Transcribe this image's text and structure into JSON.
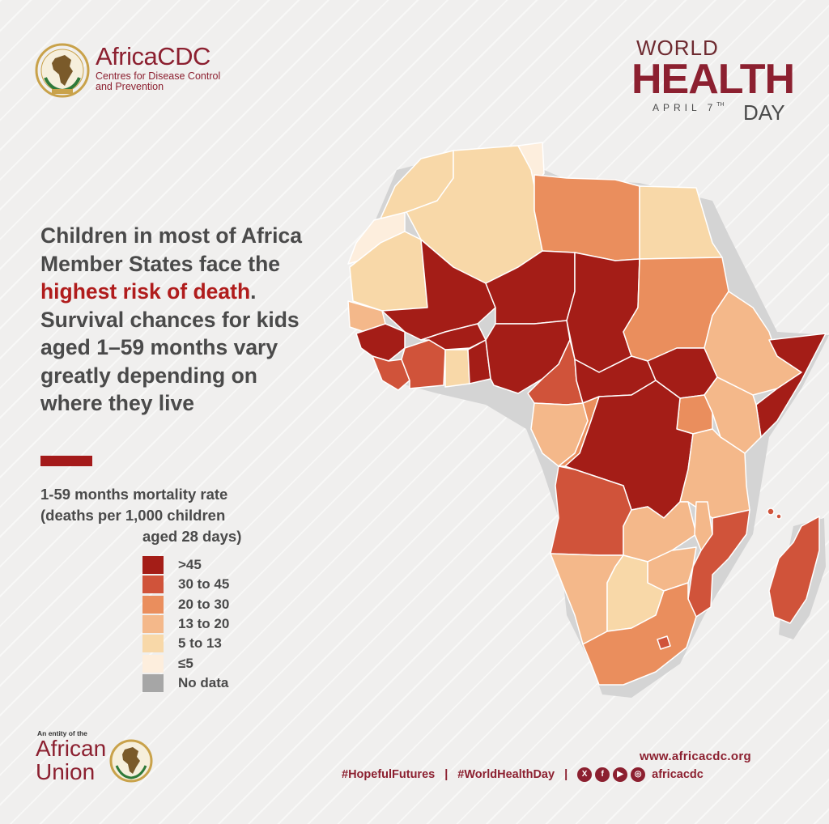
{
  "org": {
    "name": "AfricaCDC",
    "subtitle_line1": "Centres for Disease Control",
    "subtitle_line2": "and Prevention"
  },
  "event": {
    "line1": "WORLD",
    "line2": "HEALTH",
    "date_month": "APRIL 7",
    "date_suffix": "TH",
    "line3": "DAY"
  },
  "headline": {
    "part1": "Children in most of Africa Member States face the ",
    "highlight": "highest risk of death",
    "part2": ". Survival chances for kids aged 1–59 months vary greatly depending on where they live"
  },
  "legend": {
    "title_line1": "1-59 months mortality rate",
    "title_line2": "(deaths per 1,000 children",
    "title_line3": "aged 28 days)",
    "items": [
      {
        "label": ">45",
        "color": "#a41d17"
      },
      {
        "label": "30 to 45",
        "color": "#d0533a"
      },
      {
        "label": "20 to 30",
        "color": "#ea8e5d"
      },
      {
        "label": "13 to 20",
        "color": "#f4b88a"
      },
      {
        "label": "5 to 13",
        "color": "#f8d8a8"
      },
      {
        "label": "≤5",
        "color": "#fdeedd"
      },
      {
        "label": "No data",
        "color": "#a6a6a6"
      }
    ]
  },
  "footer": {
    "entity_text": "An entity of the",
    "union_line1": "African",
    "union_line2": "Union",
    "url": "www.africacdc.org",
    "hashtag1": "#HopefulFutures",
    "separator": "|",
    "hashtag2": "#WorldHealthDay",
    "social_icons": [
      "x-icon",
      "facebook-icon",
      "youtube-icon",
      "instagram-icon"
    ],
    "social_letters": [
      "X",
      "f",
      "▶",
      "◎"
    ],
    "handle": "africacdc"
  },
  "colors": {
    "brand": "#8c2030",
    "accent_red": "#b01c1c",
    "shadow": "#d9d9d9"
  }
}
